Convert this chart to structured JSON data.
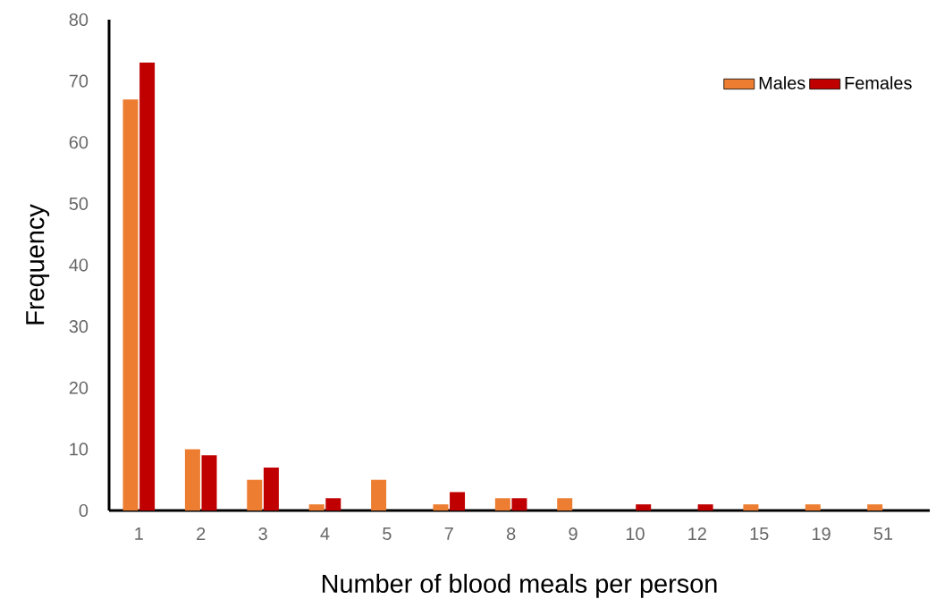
{
  "chart_data": {
    "type": "bar",
    "xlabel": "Number of blood meals per person",
    "ylabel": "Frequency",
    "categories": [
      "1",
      "2",
      "3",
      "4",
      "5",
      "7",
      "8",
      "9",
      "10",
      "12",
      "15",
      "19",
      "51"
    ],
    "series": [
      {
        "name": "Males",
        "color": "#ed7d31",
        "values": [
          67,
          10,
          5,
          1,
          5,
          1,
          2,
          2,
          0,
          0,
          1,
          1,
          1
        ]
      },
      {
        "name": "Females",
        "color": "#c00000",
        "values": [
          73,
          9,
          7,
          2,
          0,
          3,
          2,
          0,
          1,
          1,
          0,
          0,
          0
        ]
      }
    ],
    "ylim": [
      0,
      80
    ],
    "yticks": [
      0,
      10,
      20,
      30,
      40,
      50,
      60,
      70,
      80
    ],
    "grid": false,
    "legend": "top right"
  }
}
